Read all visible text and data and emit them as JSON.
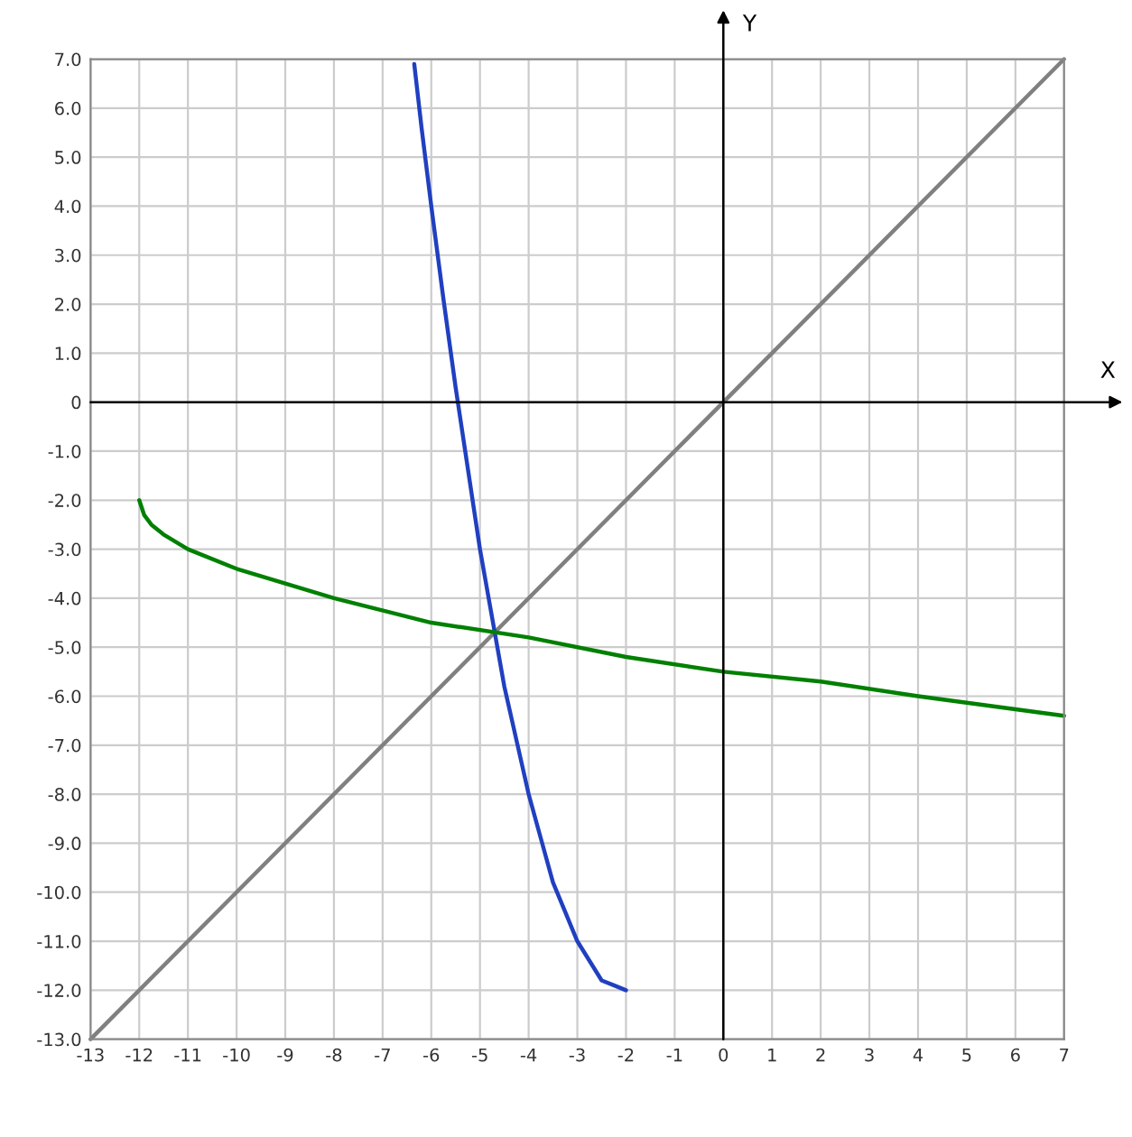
{
  "chart_data": {
    "type": "line",
    "xlabel": "X",
    "ylabel": "Y",
    "series": [
      {
        "color": "#808080",
        "x": [
          -13,
          7
        ],
        "values": [
          -13,
          7
        ]
      },
      {
        "color": "#2040c0",
        "x": [
          -6.35,
          -6.2,
          -6.0,
          -5.75,
          -5.5,
          -5.0,
          -4.75,
          -4.5,
          -4.25,
          -4.0,
          -3.75,
          -3.5,
          -3.25,
          -3.0,
          -2.75,
          -2.5,
          -2.25,
          -2.0
        ],
        "values": [
          6.9,
          5.6,
          4.0,
          2.1,
          0.3,
          -3.0,
          -4.4,
          -5.8,
          -6.9,
          -8.0,
          -8.9,
          -9.8,
          -10.4,
          -11.0,
          -11.4,
          -11.8,
          -11.9,
          -12.0
        ]
      },
      {
        "color": "#008000",
        "x": [
          -12,
          -11.9,
          -11.75,
          -11.5,
          -11,
          -10,
          -9,
          -8,
          -6,
          -4,
          -2,
          0,
          2,
          4,
          7
        ],
        "values": [
          -2.0,
          -2.3,
          -2.5,
          -2.7,
          -3.0,
          -3.4,
          -3.7,
          -4.0,
          -4.5,
          -4.8,
          -5.2,
          -5.5,
          -5.7,
          -6.0,
          -6.4
        ]
      }
    ],
    "xlim": [
      -13,
      7
    ],
    "ylim": [
      -13,
      7
    ],
    "xticks": [
      -13,
      -12,
      -11,
      -10,
      -9,
      -8,
      -7,
      -6,
      -5,
      -4,
      -3,
      -2,
      -1,
      0,
      1,
      2,
      3,
      4,
      5,
      6,
      7
    ],
    "yticks": [
      {
        "value": -13,
        "label": "-13.0"
      },
      {
        "value": -12,
        "label": "-12.0"
      },
      {
        "value": -11,
        "label": "-11.0"
      },
      {
        "value": -10,
        "label": "-10.0"
      },
      {
        "value": -9,
        "label": "-9.0"
      },
      {
        "value": -8,
        "label": "-8.0"
      },
      {
        "value": -7,
        "label": "-7.0"
      },
      {
        "value": -6,
        "label": "-6.0"
      },
      {
        "value": -5,
        "label": "-5.0"
      },
      {
        "value": -4,
        "label": "-4.0"
      },
      {
        "value": -3,
        "label": "-3.0"
      },
      {
        "value": -2,
        "label": "-2.0"
      },
      {
        "value": -1,
        "label": "-1.0"
      },
      {
        "value": 0,
        "label": "0"
      },
      {
        "value": 1,
        "label": "1.0"
      },
      {
        "value": 2,
        "label": "2.0"
      },
      {
        "value": 3,
        "label": "3.0"
      },
      {
        "value": 4,
        "label": "4.0"
      },
      {
        "value": 5,
        "label": "5.0"
      },
      {
        "value": 6,
        "label": "6.0"
      },
      {
        "value": 7,
        "label": "7.0"
      }
    ],
    "grid": true,
    "marker": "none",
    "line_style": "solid"
  }
}
